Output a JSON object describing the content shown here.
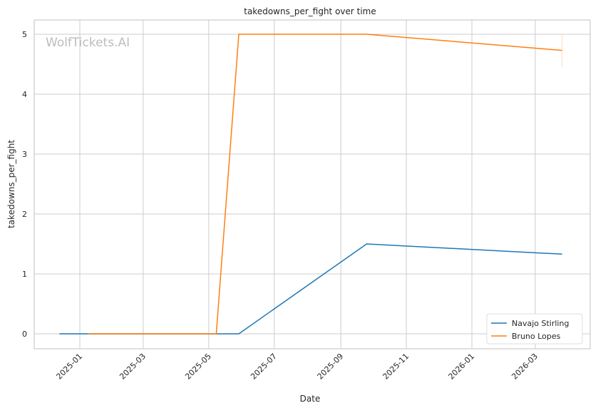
{
  "chart_data": {
    "type": "line",
    "title": "takedowns_per_fight over time",
    "xlabel": "Date",
    "ylabel": "takedowns_per_fight",
    "watermark": "WolfTickets.AI",
    "ylim": [
      -0.25,
      5.25
    ],
    "xlim": [
      "2024-11-29",
      "2026-04-10"
    ],
    "yticks": [
      0,
      1,
      2,
      3,
      4,
      5
    ],
    "xticks": [
      "2025-01",
      "2025-03",
      "2025-05",
      "2025-07",
      "2025-09",
      "2025-11",
      "2026-01",
      "2026-03"
    ],
    "grid": true,
    "legend_position": "bottom-right",
    "series": [
      {
        "name": "Navajo Stirling",
        "color": "#1f77b4",
        "x": [
          "2024-12-13",
          "2025-05-29",
          "2025-09-25",
          "2026-03-26"
        ],
        "y": [
          0,
          0,
          1.5,
          1.33
        ]
      },
      {
        "name": "Bruno Lopes",
        "color": "#ff7f0e",
        "x": [
          "2025-01-09",
          "2025-05-08",
          "2025-05-29",
          "2025-09-25",
          "2026-03-26"
        ],
        "y": [
          0,
          0,
          5,
          5,
          4.73
        ],
        "error_band": {
          "x": "2026-03-26",
          "low": 4.45,
          "high": 5.0
        }
      }
    ]
  }
}
